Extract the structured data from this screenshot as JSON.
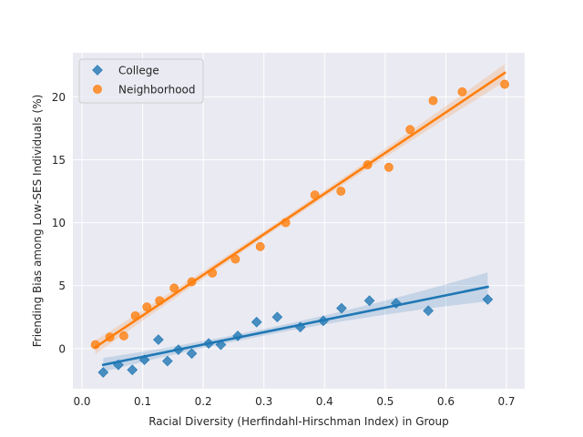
{
  "chart_data": {
    "type": "scatter",
    "title": "",
    "xlabel": "Racial Diversity (Herfindahl-Hirschman Index) in Group",
    "ylabel": "Friending Bias among Low-SES Individuals (%)",
    "xlim": [
      -0.015,
      0.73
    ],
    "ylim": [
      -3.2,
      23.5
    ],
    "x_ticks": [
      0.0,
      0.1,
      0.2,
      0.3,
      0.4,
      0.5,
      0.6,
      0.7
    ],
    "x_tick_labels": [
      "0.0",
      "0.1",
      "0.2",
      "0.3",
      "0.4",
      "0.5",
      "0.6",
      "0.7"
    ],
    "y_ticks": [
      0,
      5,
      10,
      15,
      20
    ],
    "y_tick_labels": [
      "0",
      "5",
      "10",
      "15",
      "20"
    ],
    "grid": true,
    "legend_position": "upper-left",
    "colors": {
      "background": "#eaeaf2",
      "grid": "#ffffff",
      "text": "#262626"
    },
    "series": [
      {
        "name": "College",
        "color": "#1f77b4",
        "marker": "diamond",
        "points": [
          [
            0.035,
            -1.9
          ],
          [
            0.06,
            -1.3
          ],
          [
            0.083,
            -1.7
          ],
          [
            0.103,
            -0.9
          ],
          [
            0.126,
            0.7
          ],
          [
            0.141,
            -1.0
          ],
          [
            0.159,
            -0.1
          ],
          [
            0.181,
            -0.4
          ],
          [
            0.209,
            0.4
          ],
          [
            0.229,
            0.3
          ],
          [
            0.257,
            1.0
          ],
          [
            0.288,
            2.1
          ],
          [
            0.322,
            2.5
          ],
          [
            0.36,
            1.7
          ],
          [
            0.398,
            2.2
          ],
          [
            0.428,
            3.2
          ],
          [
            0.474,
            3.8
          ],
          [
            0.518,
            3.6
          ],
          [
            0.571,
            3.0
          ],
          [
            0.669,
            3.9
          ]
        ],
        "fit": {
          "x_start": 0.035,
          "x_end": 0.669,
          "y_start": -1.3,
          "y_end": 4.9,
          "ci_halfwidth_start": 0.55,
          "ci_halfwidth_mid": 0.3,
          "ci_halfwidth_end": 1.15
        }
      },
      {
        "name": "Neighborhood",
        "color": "#ff7f0e",
        "marker": "circle",
        "points": [
          [
            0.022,
            0.3
          ],
          [
            0.046,
            0.9
          ],
          [
            0.069,
            1.0
          ],
          [
            0.088,
            2.6
          ],
          [
            0.107,
            3.3
          ],
          [
            0.128,
            3.8
          ],
          [
            0.152,
            4.8
          ],
          [
            0.181,
            5.3
          ],
          [
            0.215,
            6.0
          ],
          [
            0.253,
            7.1
          ],
          [
            0.294,
            8.1
          ],
          [
            0.336,
            10.0
          ],
          [
            0.384,
            12.2
          ],
          [
            0.427,
            12.5
          ],
          [
            0.471,
            14.6
          ],
          [
            0.506,
            14.4
          ],
          [
            0.541,
            17.4
          ],
          [
            0.579,
            19.7
          ],
          [
            0.627,
            20.4
          ],
          [
            0.697,
            21.0
          ]
        ],
        "fit": {
          "x_start": 0.022,
          "x_end": 0.697,
          "y_start": 0.1,
          "y_end": 21.9,
          "ci_halfwidth_start": 0.55,
          "ci_halfwidth_mid": 0.25,
          "ci_halfwidth_end": 0.7
        }
      }
    ]
  }
}
